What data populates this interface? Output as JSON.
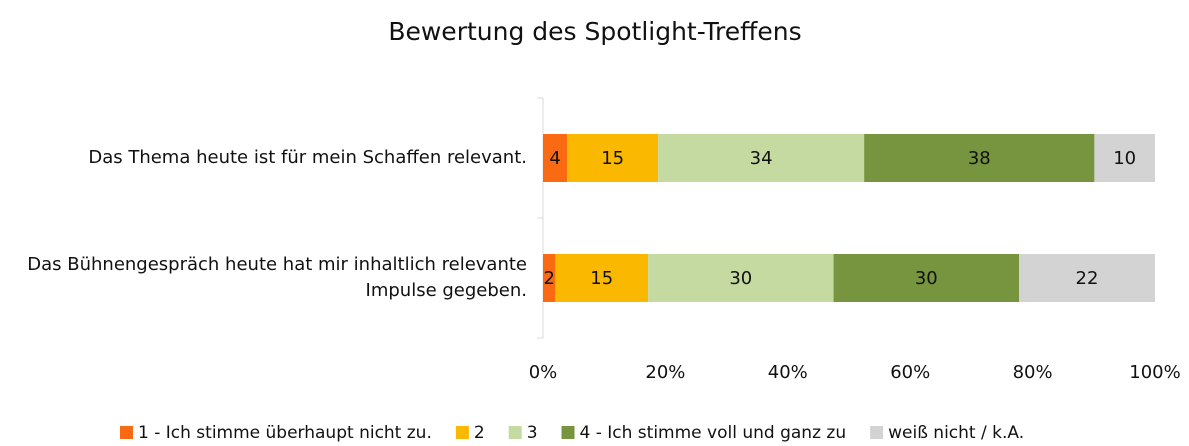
{
  "chart_data": {
    "type": "stacked-bar-horizontal",
    "stacking": "percent",
    "title": "Bewertung des Spotlight-Treffens",
    "categories": [
      "Das Thema heute ist für mein Schaffen relevant.",
      "Das Bühnengespräch heute hat mir inhaltlich relevante Impulse gegeben."
    ],
    "series": [
      {
        "name": "1 - Ich stimme überhaupt nicht zu.",
        "color": "#f96a12",
        "values": [
          4,
          2
        ]
      },
      {
        "name": "2",
        "color": "#fbb800",
        "values": [
          15,
          15
        ]
      },
      {
        "name": "3",
        "color": "#c4daa0",
        "values": [
          34,
          30
        ]
      },
      {
        "name": "4 - Ich stimme voll und ganz zu",
        "color": "#77953f",
        "values": [
          38,
          30
        ]
      },
      {
        "name": "weiß nicht / k.A.",
        "color": "#d3d3d3",
        "values": [
          10,
          22
        ]
      }
    ],
    "xlim": [
      0,
      100
    ],
    "xticks": [
      {
        "value": 0,
        "label": "0%"
      },
      {
        "value": 20,
        "label": "20%"
      },
      {
        "value": 40,
        "label": "40%"
      },
      {
        "value": 60,
        "label": "60%"
      },
      {
        "value": 80,
        "label": "80%"
      },
      {
        "value": 100,
        "label": "100%"
      }
    ],
    "legend": "bottom"
  }
}
